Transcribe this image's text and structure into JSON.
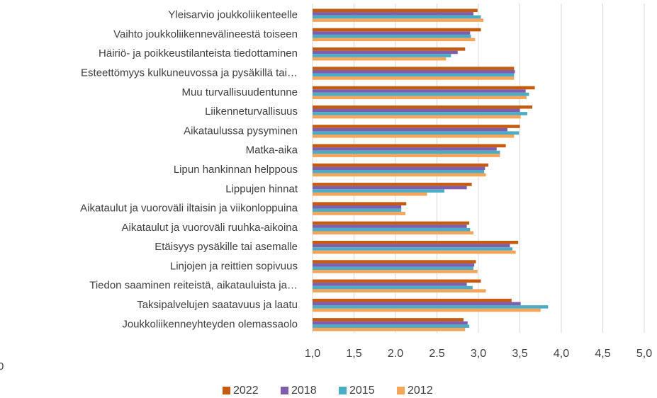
{
  "chart_data": {
    "type": "bar",
    "orientation": "horizontal",
    "categories": [
      "Yleisarvio joukkoliikenteelle",
      "Vaihto joukkoliikennevälineestä toiseen",
      "Häiriö- ja poikkeustilanteista tiedottaminen",
      "Esteettömyys kulkuneuvossa ja pysäkillä tai…",
      "Muu turvallisuudentunne",
      "Liikenneturvallisuus",
      "Aikataulussa pysyminen",
      "Matka-aika",
      "Lipun hankinnan helppous",
      "Lippujen hinnat",
      "Aikataulut ja vuoroväli iltaisin ja viikonloppuina",
      "Aikataulut ja vuoroväli ruuhka-aikoina",
      "Etäisyys pysäkille tai asemalle",
      "Linjojen ja reittien sopivuus",
      "Tiedon saaminen reiteistä, aikatauluista ja…",
      "Taksipalvelujen saatavuus ja laatu",
      "Joukkoliikenneyhteyden olemassaolo"
    ],
    "series": [
      {
        "name": "2022",
        "color": "#c55a11",
        "values": [
          2.99,
          3.03,
          2.84,
          3.43,
          3.68,
          3.65,
          3.5,
          3.33,
          3.12,
          2.92,
          2.13,
          2.89,
          3.48,
          2.97,
          3.03,
          3.4,
          2.82
        ]
      },
      {
        "name": "2018",
        "color": "#7f5fad",
        "values": [
          2.94,
          2.9,
          2.75,
          3.44,
          3.57,
          3.5,
          3.35,
          3.22,
          3.08,
          2.86,
          2.07,
          2.86,
          3.38,
          2.95,
          2.86,
          3.51,
          2.87
        ]
      },
      {
        "name": "2015",
        "color": "#4bacc6",
        "values": [
          3.03,
          2.91,
          2.67,
          3.43,
          3.61,
          3.59,
          3.49,
          3.26,
          3.07,
          2.59,
          2.07,
          2.9,
          3.41,
          2.94,
          2.93,
          3.84,
          2.89
        ]
      },
      {
        "name": "2012",
        "color": "#f4a55a",
        "values": [
          3.06,
          2.96,
          2.61,
          3.43,
          3.58,
          3.51,
          3.43,
          3.26,
          3.09,
          2.38,
          2.12,
          2.94,
          3.45,
          2.99,
          3.09,
          3.75,
          2.84
        ]
      }
    ],
    "xlim": [
      1,
      5
    ],
    "xticks": [
      {
        "value": 1,
        "label": "1,0"
      },
      {
        "value": 1.5,
        "label": "1,5"
      },
      {
        "value": 2,
        "label": "2.0"
      },
      {
        "value": 2.5,
        "label": "2.5"
      },
      {
        "value": 3,
        "label": "3,0"
      },
      {
        "value": 3.5,
        "label": "3,5"
      },
      {
        "value": 4,
        "label": "4,0"
      },
      {
        "value": 4.5,
        "label": "4,5"
      },
      {
        "value": 5,
        "label": "5,0"
      }
    ],
    "grid": true,
    "legend": "bottom",
    "annotation": "0"
  }
}
